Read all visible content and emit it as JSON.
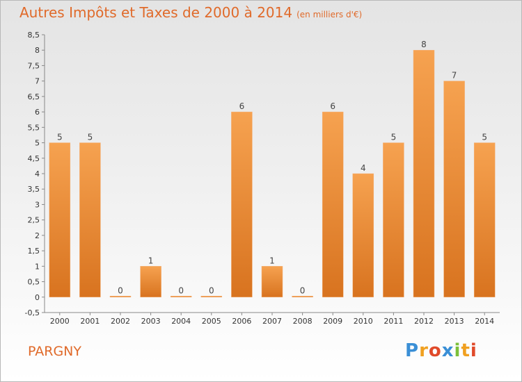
{
  "chart_data": {
    "type": "bar",
    "title": "Autres Impôts et Taxes de 2000 à 2014",
    "subtitle": "(en milliers d'€)",
    "categories": [
      "2000",
      "2001",
      "2002",
      "2003",
      "2004",
      "2005",
      "2006",
      "2007",
      "2008",
      "2009",
      "2010",
      "2011",
      "2012",
      "2013",
      "2014"
    ],
    "values": [
      5,
      5,
      0,
      1,
      0,
      0,
      6,
      1,
      0,
      6,
      4,
      5,
      8,
      7,
      5
    ],
    "ylim": [
      -0.5,
      8.5
    ],
    "yticks": [
      -0.5,
      0,
      0.5,
      1,
      1.5,
      2,
      2.5,
      3,
      3.5,
      4,
      4.5,
      5,
      5.5,
      6,
      6.5,
      7,
      7.5,
      8,
      8.5
    ],
    "ytick_labels": [
      "-0,5",
      "0",
      "0,5",
      "1",
      "1,5",
      "2",
      "2,5",
      "3",
      "3,5",
      "4",
      "4,5",
      "5",
      "5,5",
      "6",
      "6,5",
      "7",
      "7,5",
      "8",
      "8,5"
    ],
    "grid": false,
    "bar_color": "#ee8a3a"
  },
  "footer": {
    "place": "PARGNY",
    "logo_letters": [
      {
        "ch": "P",
        "color": "#3a8fd6"
      },
      {
        "ch": "r",
        "color": "#f0a020"
      },
      {
        "ch": "o",
        "color": "#e04a2a"
      },
      {
        "ch": "x",
        "color": "#3a8fd6"
      },
      {
        "ch": "i",
        "color": "#7cc03a"
      },
      {
        "ch": "t",
        "color": "#f0a020"
      },
      {
        "ch": "i",
        "color": "#e04a2a"
      }
    ]
  }
}
